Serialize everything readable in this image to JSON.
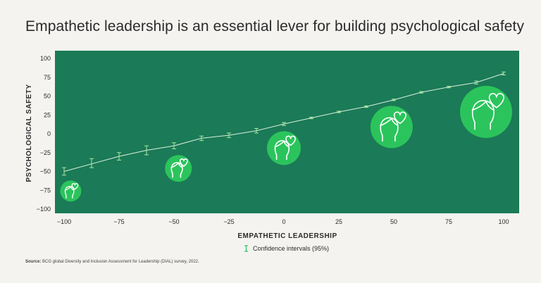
{
  "title": "Empathetic leadership is an essential lever for building psychological safety",
  "legend": {
    "label": "Confidence intervals (95%)"
  },
  "source": {
    "prefix": "Source:",
    "text": "BCG global Diversity and Inclusion Assessment for Leadership (DIAL) survey, 2022."
  },
  "colors": {
    "panel": "#1b7a57",
    "accent": "#2bc45c",
    "line": "#d8f0dc",
    "errorbar": "#a7e8a0"
  },
  "chart_data": {
    "type": "line",
    "title": "Empathetic leadership is an essential lever for building psychological safety",
    "xlabel": "EMPATHETIC LEADERSHIP",
    "ylabel": "PSYCHOLOGICAL SAFETY",
    "xlim": [
      -100,
      100
    ],
    "ylim": [
      -100,
      100
    ],
    "xticks": [
      -100,
      -75,
      -50,
      -25,
      0,
      25,
      50,
      75,
      100
    ],
    "yticks": [
      100,
      75,
      50,
      25,
      0,
      -25,
      -50,
      -75,
      -100
    ],
    "grid": false,
    "series": [
      {
        "name": "Confidence intervals (95%)",
        "x": [
          -100,
          -87.5,
          -75,
          -62.5,
          -50,
          -37.5,
          -25,
          -12.5,
          0,
          12.5,
          25,
          37.5,
          50,
          62.5,
          75,
          87.5,
          100
        ],
        "y": [
          -50,
          -40,
          -30,
          -22,
          -16,
          -6,
          -2,
          4,
          13,
          21,
          29,
          36,
          45,
          55,
          62,
          68,
          80
        ],
        "ci_low": [
          -55,
          -45,
          -35,
          -28,
          -20,
          -9,
          -5,
          1,
          11,
          20,
          28,
          35,
          44,
          54,
          61,
          66,
          78
        ],
        "ci_high": [
          -45,
          -33,
          -25,
          -16,
          -12,
          -3,
          1,
          7,
          15,
          22,
          30,
          37,
          46,
          56,
          63,
          70,
          82
        ]
      }
    ],
    "icons": [
      {
        "name": "person-heart-icon",
        "x": -97,
        "y": -76,
        "size": 1
      },
      {
        "name": "person-heart-icon",
        "x": -48,
        "y": -46,
        "size": 2
      },
      {
        "name": "person-heart-icon",
        "x": 0,
        "y": -19,
        "size": 3
      },
      {
        "name": "person-heart-icon",
        "x": 49,
        "y": 9,
        "size": 4
      },
      {
        "name": "person-heart-icon",
        "x": 92,
        "y": 29,
        "size": 5
      }
    ]
  }
}
